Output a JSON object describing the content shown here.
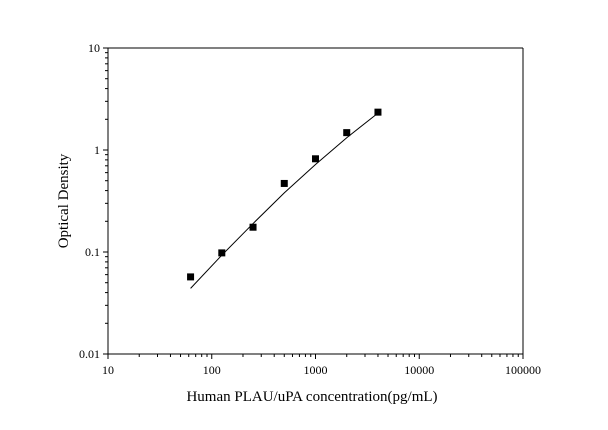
{
  "chart_data": {
    "type": "scatter",
    "title": "",
    "xlabel": "Human PLAU/uPA concentration(pg/mL)",
    "ylabel": "Optical Density",
    "x_scale": "log",
    "y_scale": "log",
    "xlim": [
      10,
      100000
    ],
    "ylim": [
      0.01,
      10
    ],
    "x_ticks": [
      10,
      100,
      1000,
      10000,
      100000
    ],
    "x_tick_labels": [
      "10",
      "100",
      "1000",
      "10000",
      "100000"
    ],
    "y_ticks": [
      0.01,
      0.1,
      1,
      10
    ],
    "y_tick_labels": [
      "0.01",
      "0.1",
      "1",
      "10"
    ],
    "grid": false,
    "legend": "none",
    "series": [
      {
        "kind": "points",
        "marker": "square",
        "x": [
          62.5,
          125,
          250,
          500,
          1000,
          2000,
          4000
        ],
        "y": [
          0.057,
          0.098,
          0.175,
          0.47,
          0.82,
          1.48,
          2.35
        ]
      },
      {
        "kind": "fit-line",
        "x": [
          62.5,
          125,
          250,
          500,
          1000,
          2000,
          4000
        ],
        "y": [
          0.044,
          0.093,
          0.19,
          0.38,
          0.72,
          1.32,
          2.3
        ]
      }
    ],
    "colors": {
      "axis": "#000000",
      "marker": "#000000",
      "line": "#000000"
    }
  }
}
